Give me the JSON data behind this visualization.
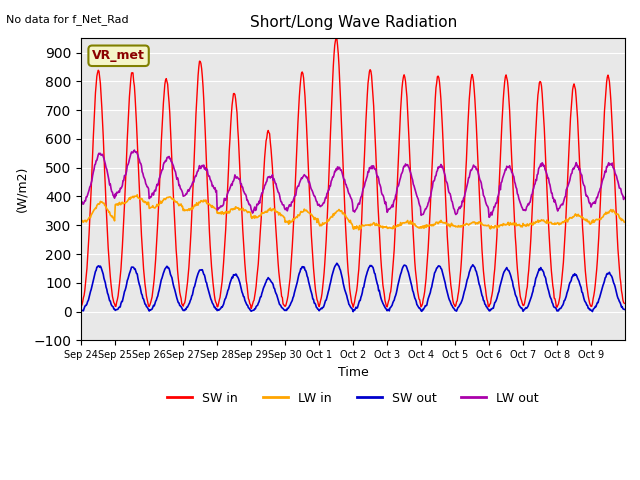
{
  "title": "Short/Long Wave Radiation",
  "subtitle": "No data for f_Net_Rad",
  "ylabel": "(W/m2)",
  "xlabel": "Time",
  "ylim": [
    -100,
    950
  ],
  "yticks": [
    -100,
    0,
    100,
    200,
    300,
    400,
    500,
    600,
    700,
    800,
    900
  ],
  "background_color": "#e8e8e8",
  "colors": {
    "SW_in": "#ff0000",
    "LW_in": "#ffa500",
    "SW_out": "#0000cc",
    "LW_out": "#aa00aa"
  },
  "station_label": "VR_met",
  "legend_labels": [
    "SW in",
    "LW in",
    "SW out",
    "LW out"
  ],
  "x_tick_labels": [
    "Sep 24",
    "Sep 25",
    "Sep 26",
    "Sep 27",
    "Sep 28",
    "Sep 29",
    "Sep 30",
    "Oct 1",
    "Oct 2",
    "Oct 3",
    "Oct 4",
    "Oct 5",
    "Oct 6",
    "Oct 7",
    "Oct 8",
    "Oct 9"
  ],
  "sw_in_peaks": [
    840,
    830,
    807,
    870,
    760,
    630,
    830,
    950,
    840,
    823,
    820,
    820,
    820,
    800,
    790,
    820
  ],
  "lw_in_base": [
    310,
    370,
    360,
    350,
    340,
    325,
    310,
    300,
    290,
    290,
    295,
    295,
    295,
    300,
    305,
    310
  ],
  "lw_in_peak_add": [
    70,
    30,
    35,
    35,
    20,
    30,
    40,
    50,
    15,
    20,
    15,
    15,
    10,
    15,
    30,
    40
  ],
  "sw_out_peaks": [
    160,
    155,
    155,
    145,
    130,
    115,
    155,
    165,
    160,
    160,
    160,
    160,
    150,
    150,
    130,
    135
  ],
  "lw_out_base": [
    360,
    400,
    390,
    400,
    350,
    340,
    350,
    360,
    340,
    340,
    330,
    330,
    330,
    340,
    345,
    365
  ],
  "lw_out_peak_add": [
    190,
    160,
    145,
    105,
    115,
    130,
    120,
    140,
    165,
    170,
    175,
    175,
    175,
    170,
    165,
    150
  ]
}
